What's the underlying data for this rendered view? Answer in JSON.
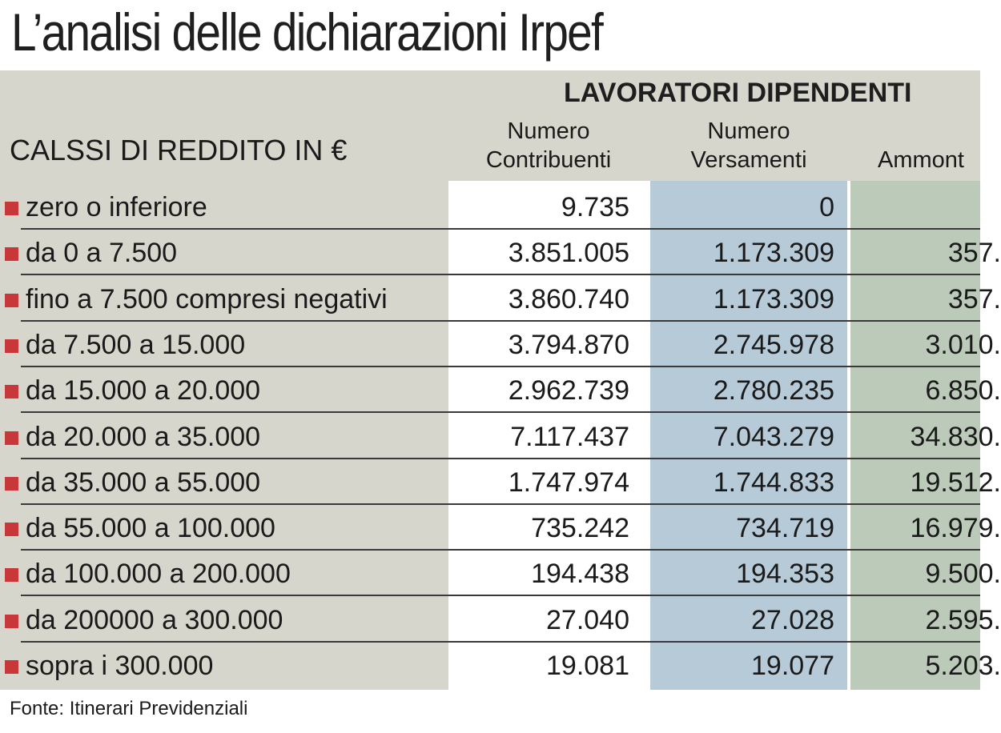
{
  "title": "L’analisi delle dichiarazioni Irpef",
  "group_header": "LAVORATORI DIPENDENTI",
  "class_header": "CALSSI DI REDDITO IN €",
  "columns": {
    "contribuenti": [
      "Numero",
      "Contribuenti"
    ],
    "versamenti": [
      "Numero",
      "Versamenti"
    ],
    "ammontare": "Ammont"
  },
  "source": "Fonte: Itinerari Previdenziali",
  "colors": {
    "band": "#d7d6cc",
    "versamenti_column": "#b6cad8",
    "ammontare_column": "#bccaba",
    "bullet": "#c8383a"
  },
  "chart_data": {
    "type": "table",
    "title": "L’analisi delle dichiarazioni Irpef",
    "group": "LAVORATORI DIPENDENTI",
    "headers": [
      "CALSSI DI REDDITO IN €",
      "Numero Contribuenti",
      "Numero Versamenti",
      "Ammont"
    ],
    "rows": [
      {
        "label": "zero o inferiore",
        "contribuenti": "9.735",
        "versamenti": "0",
        "ammontare": ""
      },
      {
        "label": "da 0 a 7.500",
        "contribuenti": "3.851.005",
        "versamenti": "1.173.309",
        "ammontare": "357."
      },
      {
        "label": "fino a 7.500 compresi negativi",
        "contribuenti": "3.860.740",
        "versamenti": "1.173.309",
        "ammontare": "357."
      },
      {
        "label": "da 7.500 a 15.000",
        "contribuenti": "3.794.870",
        "versamenti": "2.745.978",
        "ammontare": "3.010."
      },
      {
        "label": "da 15.000 a 20.000",
        "contribuenti": "2.962.739",
        "versamenti": "2.780.235",
        "ammontare": "6.850."
      },
      {
        "label": "da 20.000 a 35.000",
        "contribuenti": "7.117.437",
        "versamenti": "7.043.279",
        "ammontare": "34.830."
      },
      {
        "label": "da 35.000 a 55.000",
        "contribuenti": "1.747.974",
        "versamenti": "1.744.833",
        "ammontare": "19.512."
      },
      {
        "label": "da 55.000 a 100.000",
        "contribuenti": "735.242",
        "versamenti": "734.719",
        "ammontare": "16.979."
      },
      {
        "label": "da 100.000 a 200.000",
        "contribuenti": "194.438",
        "versamenti": "194.353",
        "ammontare": "9.500."
      },
      {
        "label": "da 200000 a 300.000",
        "contribuenti": "27.040",
        "versamenti": "27.028",
        "ammontare": "2.595."
      },
      {
        "label": "sopra i 300.000",
        "contribuenti": "19.081",
        "versamenti": "19.077",
        "ammontare": "5.203."
      }
    ]
  }
}
